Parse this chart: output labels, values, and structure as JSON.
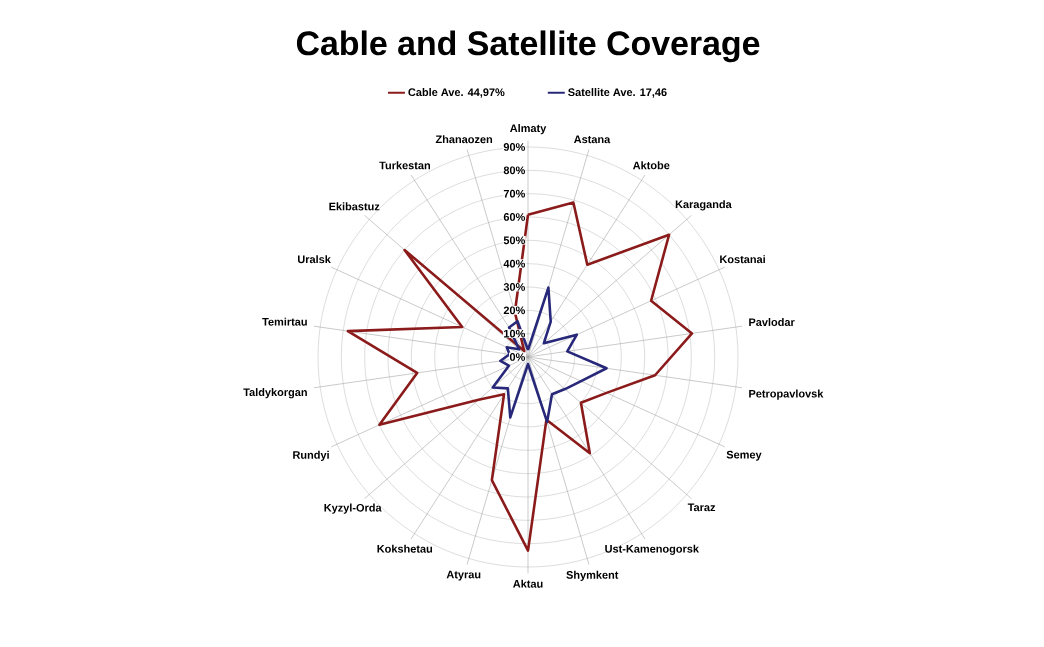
{
  "chart_data": {
    "type": "radar",
    "title": "Cable and Satellite Coverage",
    "categories": [
      "Almaty",
      "Astana",
      "Aktobe",
      "Karaganda",
      "Kostanai",
      "Pavlodar",
      "Petropavlovsk",
      "Semey",
      "Taraz",
      "Ust-Kamenogorsk",
      "Shymkent",
      "Aktau",
      "Atyrau",
      "Kokshetau",
      "Kyzyl-Orda",
      "Rundyi",
      "Taldykorgan",
      "Temirtau",
      "Uralsk",
      "Ekibastuz",
      "Turkestan",
      "Zhanaozen"
    ],
    "series": [
      {
        "name": "Cable Ave. 44,97%",
        "color": "#8b1a1a",
        "values": [
          61,
          69,
          47,
          80,
          58,
          71,
          55,
          37,
          30,
          49,
          28,
          83,
          55,
          19,
          28,
          70,
          48,
          78,
          31,
          70,
          3,
          20
        ]
      },
      {
        "name": "Satellite Ave. 17,46",
        "color": "#28287a",
        "values": [
          3,
          31,
          18,
          9,
          23,
          17,
          34,
          25,
          21,
          19,
          29,
          3,
          27,
          16,
          20,
          9,
          12,
          8,
          10,
          5,
          15,
          16
        ]
      }
    ],
    "ylim": [
      0,
      90
    ],
    "yticks": [
      {
        "value": 0,
        "label": "0%"
      },
      {
        "value": 10,
        "label": "10%"
      },
      {
        "value": 20,
        "label": "20%"
      },
      {
        "value": 30,
        "label": "30%"
      },
      {
        "value": 40,
        "label": "40%"
      },
      {
        "value": 50,
        "label": "50%"
      },
      {
        "value": 60,
        "label": "60%"
      },
      {
        "value": 70,
        "label": "70%"
      },
      {
        "value": 80,
        "label": "80%"
      },
      {
        "value": 90,
        "label": "90%"
      }
    ],
    "grid": true,
    "legend": "top"
  }
}
